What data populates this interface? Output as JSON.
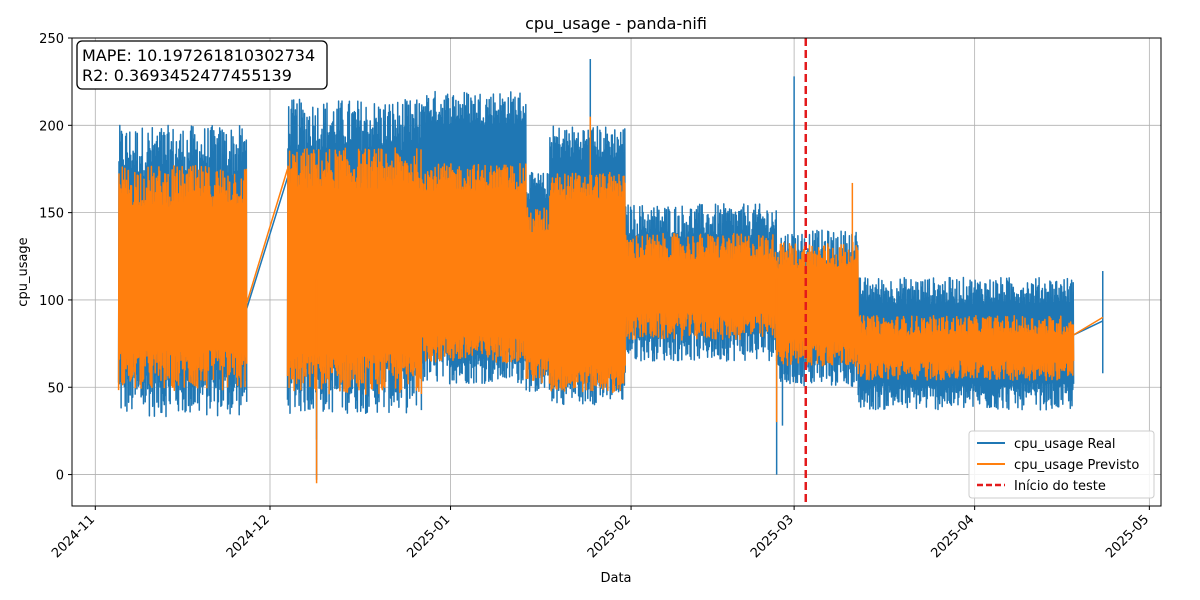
{
  "chart_data": {
    "type": "line",
    "title": "cpu_usage - panda-nifi",
    "xlabel": "Data",
    "ylabel": "cpu_usage",
    "xlim": [
      "2024-10-28",
      "2025-05-03"
    ],
    "ylim": [
      -18,
      250
    ],
    "yticks": [
      0,
      50,
      100,
      150,
      200,
      250
    ],
    "xticks": [
      "2024-11",
      "2024-12",
      "2025-01",
      "2025-02",
      "2025-03",
      "2025-04",
      "2025-05"
    ],
    "grid": true,
    "legend_position": "lower right",
    "annotation": {
      "mape_line": "MAPE: 10.197261810302734",
      "r2_line": "R2: 0.3693452477455139"
    },
    "test_start": {
      "date": "2025-03-03",
      "label": "Início do teste"
    },
    "series": [
      {
        "name": "cpu_usage Real",
        "color": "#1f77b4",
        "style": "solid",
        "segments": [
          {
            "start": "2024-11-05",
            "end": "2024-11-27",
            "base_low": 48,
            "base_high": 185,
            "amp": 15
          },
          {
            "start": "2024-12-04",
            "end": "2024-12-27",
            "base_low": 50,
            "base_high": 200,
            "amp": 15
          },
          {
            "start": "2024-12-27",
            "end": "2025-01-14",
            "base_low": 62,
            "base_high": 210,
            "amp": 10
          },
          {
            "start": "2025-01-14",
            "end": "2025-01-18",
            "base_low": 55,
            "base_high": 165,
            "amp": 8
          },
          {
            "start": "2025-01-18",
            "end": "2025-01-31",
            "base_low": 50,
            "base_high": 190,
            "amp": 10
          },
          {
            "start": "2025-01-31",
            "end": "2025-02-26",
            "base_low": 75,
            "base_high": 145,
            "amp": 10
          },
          {
            "start": "2025-02-26",
            "end": "2025-03-12",
            "base_low": 60,
            "base_high": 130,
            "amp": 10
          },
          {
            "start": "2025-03-12",
            "end": "2025-04-18",
            "base_low": 45,
            "base_high": 105,
            "amp": 8
          }
        ],
        "anchors": [
          {
            "date": "2024-11-27",
            "value": 95
          },
          {
            "date": "2024-12-04",
            "value": 170
          },
          {
            "date": "2025-04-18",
            "value": 80
          },
          {
            "date": "2025-04-23",
            "value": 88
          }
        ],
        "spikes": [
          {
            "date": "2024-12-09",
            "value": -3
          },
          {
            "date": "2024-12-09",
            "value": 20
          },
          {
            "date": "2025-02-26",
            "value": 0
          },
          {
            "date": "2025-02-27",
            "value": 28
          },
          {
            "date": "2025-03-01",
            "value": 228
          },
          {
            "date": "2025-01-25",
            "value": 238
          },
          {
            "date": "2025-04-23",
            "value": 58
          },
          {
            "date": "2025-04-23",
            "value": 102
          }
        ]
      },
      {
        "name": "cpu_usage Previsto",
        "color": "#ff7f0e",
        "style": "solid",
        "segments": [
          {
            "start": "2024-11-05",
            "end": "2024-11-27",
            "base_low": 60,
            "base_high": 165,
            "amp": 12
          },
          {
            "start": "2024-12-04",
            "end": "2024-12-27",
            "base_low": 58,
            "base_high": 175,
            "amp": 12
          },
          {
            "start": "2024-12-27",
            "end": "2025-01-14",
            "base_low": 72,
            "base_high": 170,
            "amp": 8
          },
          {
            "start": "2025-01-14",
            "end": "2025-01-18",
            "base_low": 60,
            "base_high": 145,
            "amp": 8
          },
          {
            "start": "2025-01-18",
            "end": "2025-01-31",
            "base_low": 55,
            "base_high": 165,
            "amp": 8
          },
          {
            "start": "2025-01-31",
            "end": "2025-02-26",
            "base_low": 85,
            "base_high": 130,
            "amp": 8
          },
          {
            "start": "2025-02-26",
            "end": "2025-03-12",
            "base_low": 70,
            "base_high": 125,
            "amp": 8
          },
          {
            "start": "2025-03-12",
            "end": "2025-04-18",
            "base_low": 60,
            "base_high": 85,
            "amp": 6
          }
        ],
        "anchors": [
          {
            "date": "2024-11-27",
            "value": 98
          },
          {
            "date": "2024-12-04",
            "value": 175
          },
          {
            "date": "2025-04-18",
            "value": 80
          },
          {
            "date": "2025-04-23",
            "value": 90
          }
        ],
        "spikes": [
          {
            "date": "2024-12-09",
            "value": -5
          },
          {
            "date": "2025-01-25",
            "value": 205
          },
          {
            "date": "2025-03-11",
            "value": 167
          },
          {
            "date": "2025-02-26",
            "value": 30
          }
        ]
      },
      {
        "name": "Início do teste",
        "color": "#e31a1c",
        "style": "dashed"
      }
    ]
  }
}
